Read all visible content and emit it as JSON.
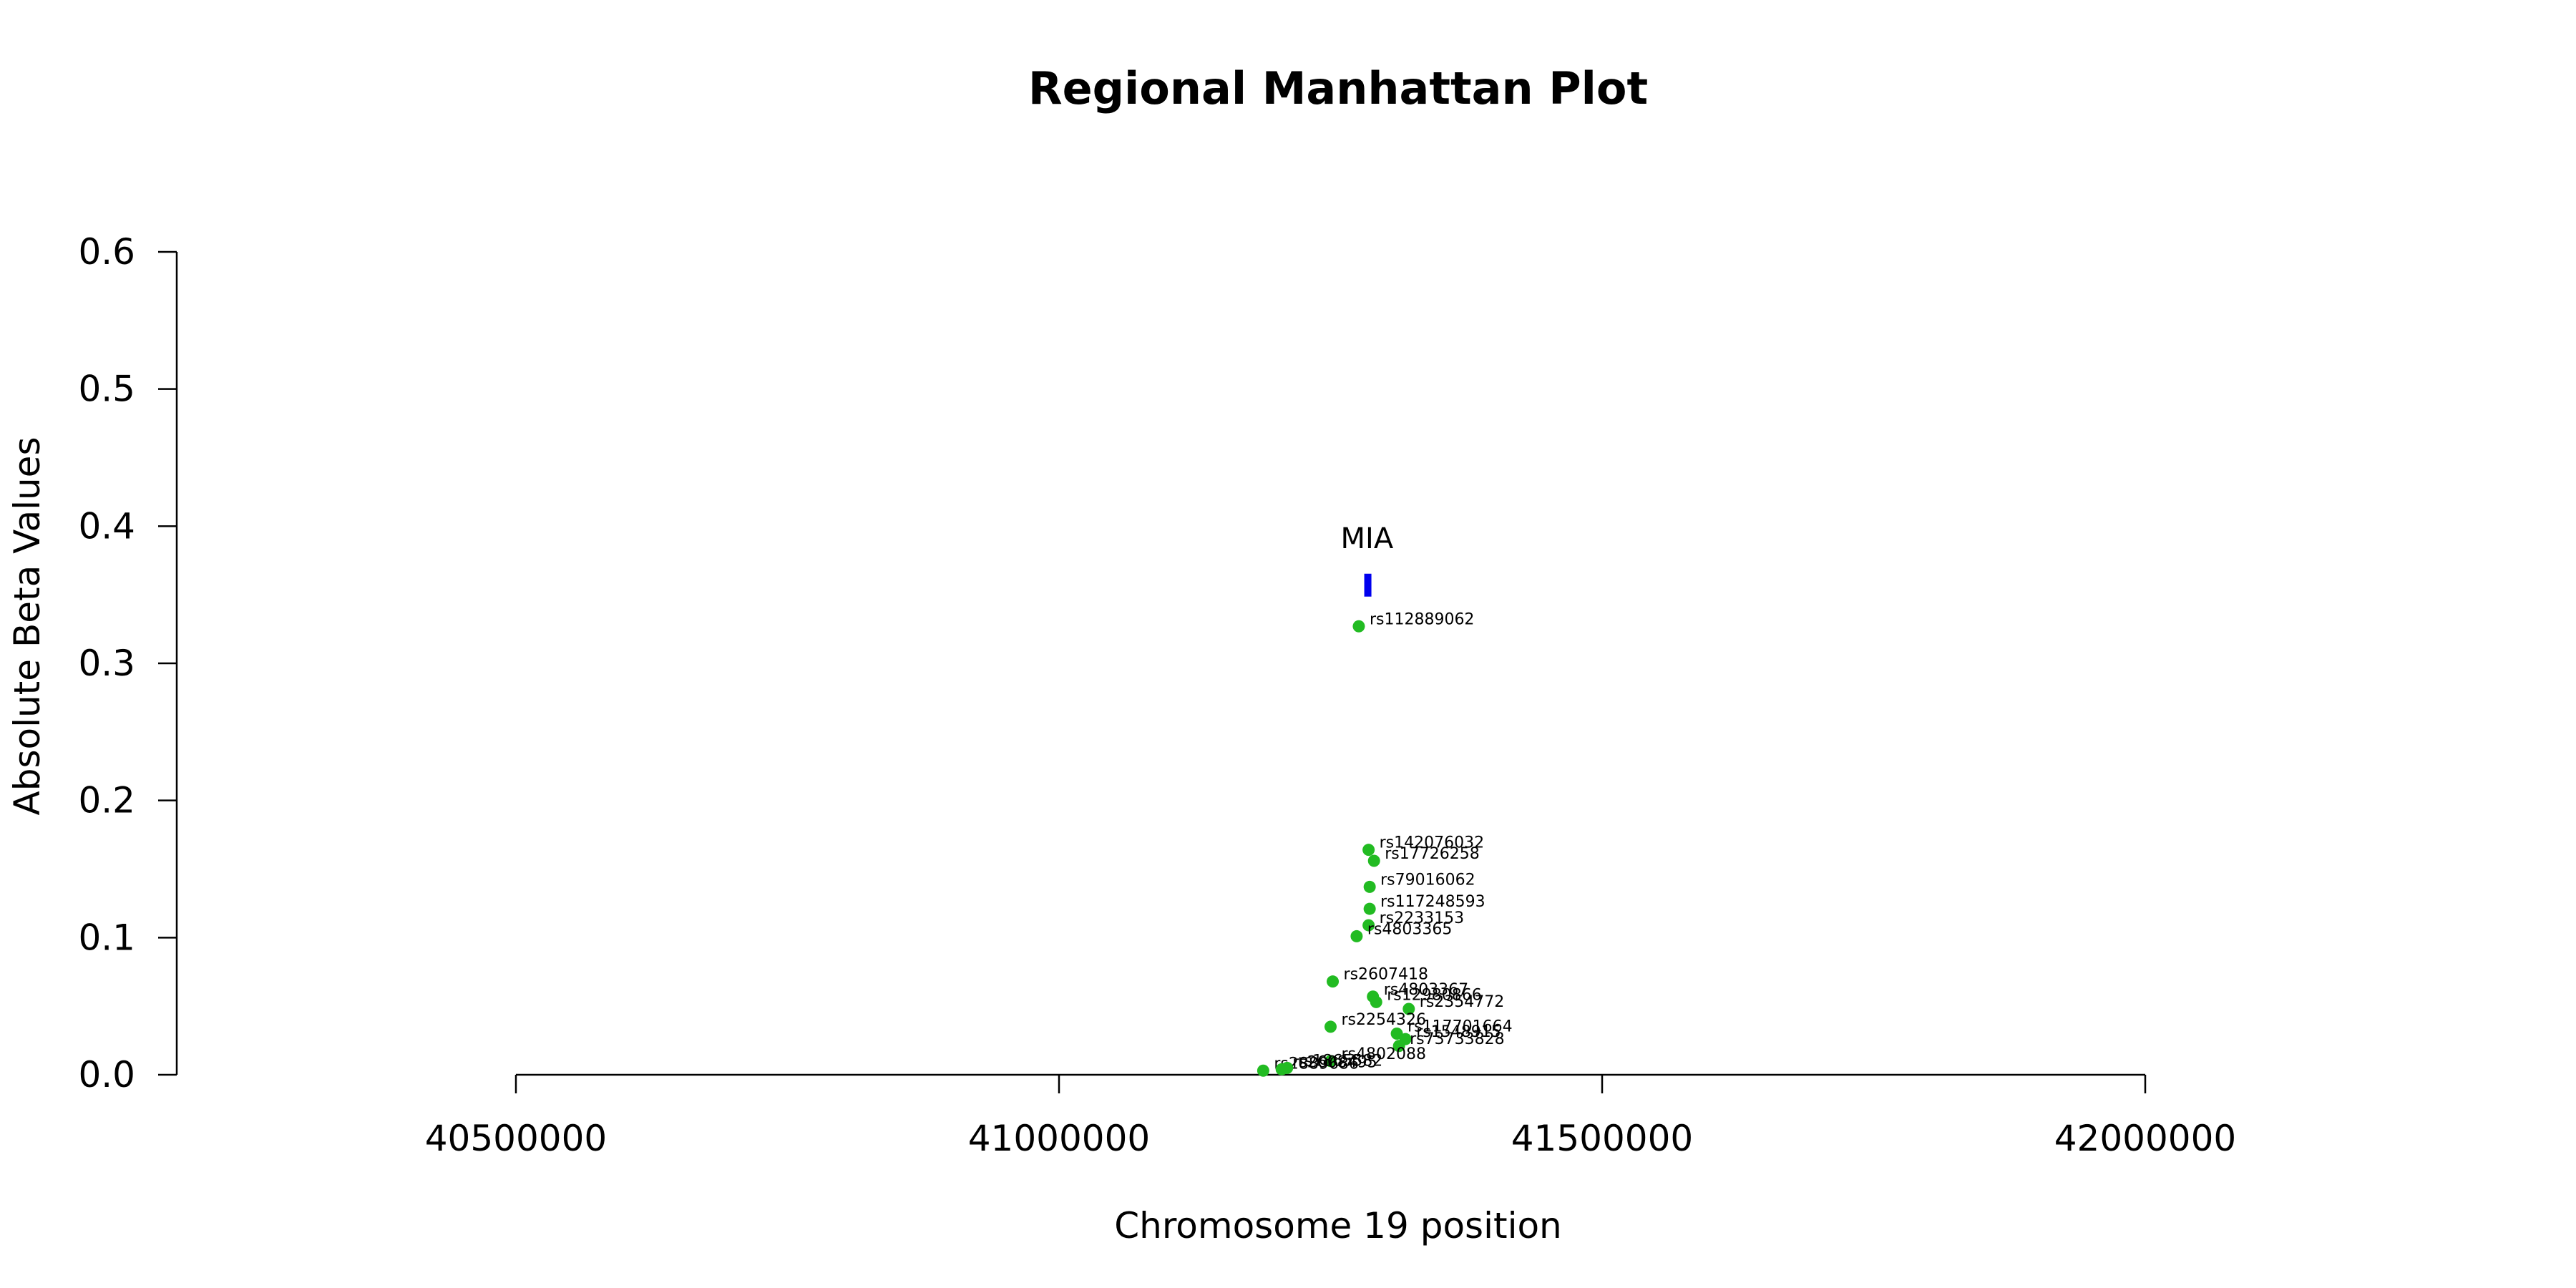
{
  "chart_data": {
    "type": "scatter",
    "title": "Regional Manhattan Plot",
    "xlabel": "Chromosome 19 position",
    "ylabel": "Absolute Beta Values",
    "xlim": [
      40500000,
      42000000
    ],
    "ylim": [
      0,
      0.6
    ],
    "x_ticks": [
      40500000,
      41000000,
      41500000,
      42000000
    ],
    "y_ticks": [
      0.0,
      0.1,
      0.2,
      0.3,
      0.4,
      0.5,
      0.6
    ],
    "x_tick_labels": [
      "40500000",
      "41000000",
      "41500000",
      "42000000"
    ],
    "y_tick_labels": [
      "0.0",
      "0.1",
      "0.2",
      "0.3",
      "0.4",
      "0.5",
      "0.6"
    ],
    "grid": false,
    "point_color": "#22bb22",
    "gene": {
      "name": "MIA",
      "start": 41281000,
      "end": 41286000,
      "value": 0.357,
      "color": "#0000ee"
    },
    "points": [
      {
        "label": "rs112889062",
        "x": 41276000,
        "y": 0.327
      },
      {
        "label": "rs142076032",
        "x": 41285000,
        "y": 0.164
      },
      {
        "label": "rs17726258",
        "x": 41290000,
        "y": 0.156
      },
      {
        "label": "rs79016062",
        "x": 41286000,
        "y": 0.137
      },
      {
        "label": "rs117248593",
        "x": 41286000,
        "y": 0.121
      },
      {
        "label": "rs2233153",
        "x": 41285000,
        "y": 0.109
      },
      {
        "label": "rs4803365",
        "x": 41274000,
        "y": 0.101
      },
      {
        "label": "rs2607418",
        "x": 41252000,
        "y": 0.068
      },
      {
        "label": "rs4803367",
        "x": 41289000,
        "y": 0.057
      },
      {
        "label": "rs12980866",
        "x": 41292000,
        "y": 0.053
      },
      {
        "label": "rs2354772",
        "x": 41322000,
        "y": 0.048
      },
      {
        "label": "rs2254326",
        "x": 41250000,
        "y": 0.035
      },
      {
        "label": "rs117701664",
        "x": 41311000,
        "y": 0.03
      },
      {
        "label": "rs1548915",
        "x": 41319000,
        "y": 0.026
      },
      {
        "label": "rs73733828",
        "x": 41313000,
        "y": 0.021
      },
      {
        "label": "rs4802088",
        "x": 41250000,
        "y": 0.01
      },
      {
        "label": "rs2889686",
        "x": 41188000,
        "y": 0.003
      },
      {
        "label": "rs2608495",
        "x": 41205000,
        "y": 0.004
      },
      {
        "label": "rs1865582",
        "x": 41210000,
        "y": 0.005
      }
    ]
  }
}
